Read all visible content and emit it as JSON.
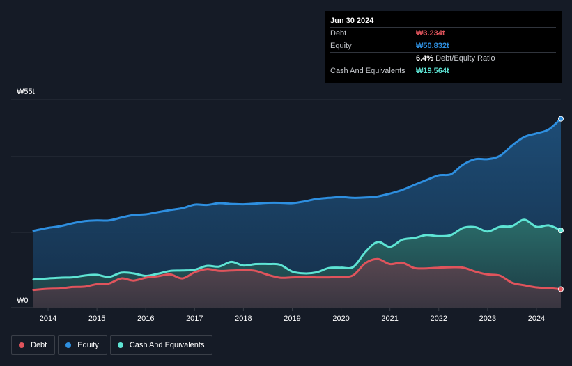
{
  "tooltip": {
    "date": "Jun 30 2024",
    "rows": [
      {
        "label": "Debt",
        "value": "₩3.234t",
        "color": "#e0545c"
      },
      {
        "label": "Equity",
        "value": "₩50.832t",
        "color": "#2e8fe0"
      },
      {
        "label": "",
        "value": "6.4%",
        "suffix": "Debt/Equity Ratio",
        "color": "#ffffff"
      },
      {
        "label": "Cash And Equivalents",
        "value": "₩19.564t",
        "color": "#5ee4d4"
      }
    ]
  },
  "legend": [
    {
      "label": "Debt",
      "color": "#e0545c"
    },
    {
      "label": "Equity",
      "color": "#2e8fe0"
    },
    {
      "label": "Cash And Equivalents",
      "color": "#5ee4d4"
    }
  ],
  "chart_data": {
    "type": "area",
    "title": "",
    "xlabel": "",
    "ylabel": "",
    "ylim": [
      0,
      55
    ],
    "ytick_labels": [
      "₩55t",
      "₩0"
    ],
    "xlim": [
      2013.7,
      2024.5
    ],
    "xticks": [
      "2014",
      "2015",
      "2016",
      "2017",
      "2018",
      "2019",
      "2020",
      "2021",
      "2022",
      "2023",
      "2024"
    ],
    "grid": true,
    "series": [
      {
        "name": "Equity",
        "color": "#2e8fe0",
        "x": [
          2013.7,
          2014.0,
          2014.25,
          2014.5,
          2014.75,
          2015.0,
          2015.25,
          2015.5,
          2015.75,
          2016.0,
          2016.25,
          2016.5,
          2016.75,
          2017.0,
          2017.25,
          2017.5,
          2017.75,
          2018.0,
          2018.25,
          2018.5,
          2018.75,
          2019.0,
          2019.25,
          2019.5,
          2019.75,
          2020.0,
          2020.25,
          2020.5,
          2020.75,
          2021.0,
          2021.25,
          2021.5,
          2021.75,
          2022.0,
          2022.25,
          2022.5,
          2022.75,
          2023.0,
          2023.25,
          2023.5,
          2023.75,
          2024.0,
          2024.25,
          2024.5
        ],
        "values": [
          19.5,
          20.3,
          20.8,
          21.6,
          22.2,
          22.4,
          22.4,
          23.2,
          23.9,
          24.1,
          24.7,
          25.3,
          25.8,
          26.8,
          26.7,
          27.2,
          27.0,
          26.9,
          27.1,
          27.3,
          27.3,
          27.2,
          27.7,
          28.4,
          28.7,
          28.9,
          28.7,
          28.8,
          29.1,
          29.9,
          30.9,
          32.3,
          33.7,
          35.0,
          35.3,
          38.0,
          39.5,
          39.5,
          40.4,
          43.3,
          45.7,
          46.7,
          47.8,
          50.8
        ]
      },
      {
        "name": "Cash And Equivalents",
        "color": "#5ee4d4",
        "x": [
          2013.7,
          2014.0,
          2014.25,
          2014.5,
          2014.75,
          2015.0,
          2015.25,
          2015.5,
          2015.75,
          2016.0,
          2016.25,
          2016.5,
          2016.75,
          2017.0,
          2017.25,
          2017.5,
          2017.75,
          2018.0,
          2018.25,
          2018.5,
          2018.75,
          2019.0,
          2019.25,
          2019.5,
          2019.75,
          2020.0,
          2020.25,
          2020.5,
          2020.75,
          2021.0,
          2021.25,
          2021.5,
          2021.75,
          2022.0,
          2022.25,
          2022.5,
          2022.75,
          2023.0,
          2023.25,
          2023.5,
          2023.75,
          2024.0,
          2024.25,
          2024.5
        ],
        "values": [
          5.9,
          6.2,
          6.4,
          6.5,
          7.0,
          7.2,
          6.6,
          7.8,
          7.6,
          6.9,
          7.5,
          8.3,
          8.4,
          8.6,
          9.7,
          9.5,
          10.8,
          9.8,
          10.2,
          10.2,
          10.0,
          8.1,
          7.6,
          7.9,
          9.1,
          9.2,
          9.4,
          13.6,
          16.4,
          15.0,
          17.0,
          17.5,
          18.3,
          18.0,
          18.3,
          20.3,
          20.5,
          19.3,
          20.6,
          20.8,
          22.6,
          20.6,
          21.0,
          19.6
        ]
      },
      {
        "name": "Debt",
        "color": "#e0545c",
        "x": [
          2013.7,
          2014.0,
          2014.25,
          2014.5,
          2014.75,
          2015.0,
          2015.25,
          2015.5,
          2015.75,
          2016.0,
          2016.25,
          2016.5,
          2016.75,
          2017.0,
          2017.25,
          2017.5,
          2017.75,
          2018.0,
          2018.25,
          2018.5,
          2018.75,
          2019.0,
          2019.25,
          2019.5,
          2019.75,
          2020.0,
          2020.25,
          2020.5,
          2020.75,
          2021.0,
          2021.25,
          2021.5,
          2021.75,
          2022.0,
          2022.25,
          2022.5,
          2022.75,
          2023.0,
          2023.25,
          2023.5,
          2023.75,
          2024.0,
          2024.25,
          2024.5
        ],
        "values": [
          3.0,
          3.3,
          3.4,
          3.8,
          3.9,
          4.6,
          4.8,
          6.2,
          5.6,
          6.4,
          6.8,
          7.3,
          6.2,
          7.9,
          8.8,
          8.3,
          8.4,
          8.5,
          8.3,
          7.2,
          6.4,
          6.5,
          6.6,
          6.5,
          6.5,
          6.6,
          7.1,
          10.5,
          11.6,
          10.2,
          10.6,
          9.1,
          9.0,
          9.2,
          9.3,
          9.2,
          8.1,
          7.3,
          7.0,
          5.0,
          4.3,
          3.7,
          3.5,
          3.2
        ]
      }
    ]
  }
}
